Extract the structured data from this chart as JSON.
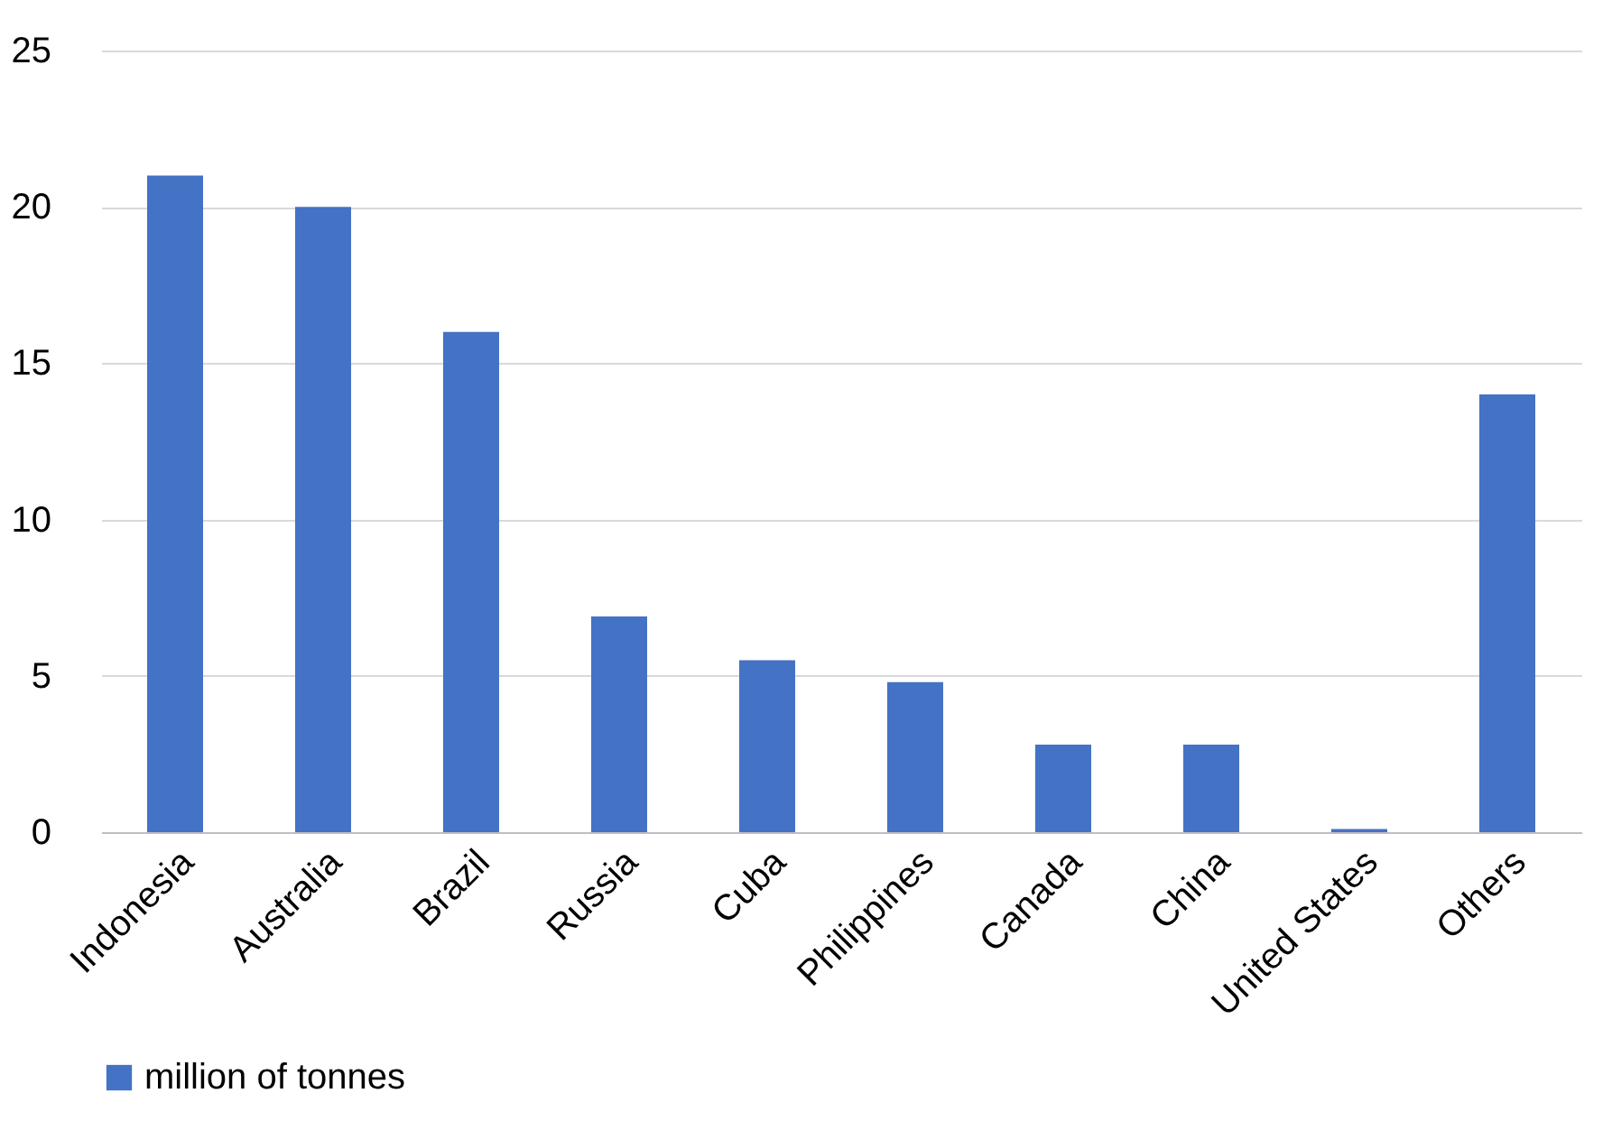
{
  "chart_data": {
    "type": "bar",
    "categories": [
      "Indonesia",
      "Australia",
      "Brazil",
      "Russia",
      "Cuba",
      "Philippines",
      "Canada",
      "China",
      "United States",
      "Others"
    ],
    "series": [
      {
        "name": "million of tonnes",
        "color": "#4472c4",
        "values": [
          21,
          20,
          16,
          6.9,
          5.5,
          4.8,
          2.8,
          2.8,
          0.1,
          14
        ]
      }
    ],
    "ylim": [
      0,
      25
    ],
    "yticks": [
      0,
      5,
      10,
      15,
      20,
      25
    ],
    "grid": "y",
    "legend": "bottom"
  }
}
